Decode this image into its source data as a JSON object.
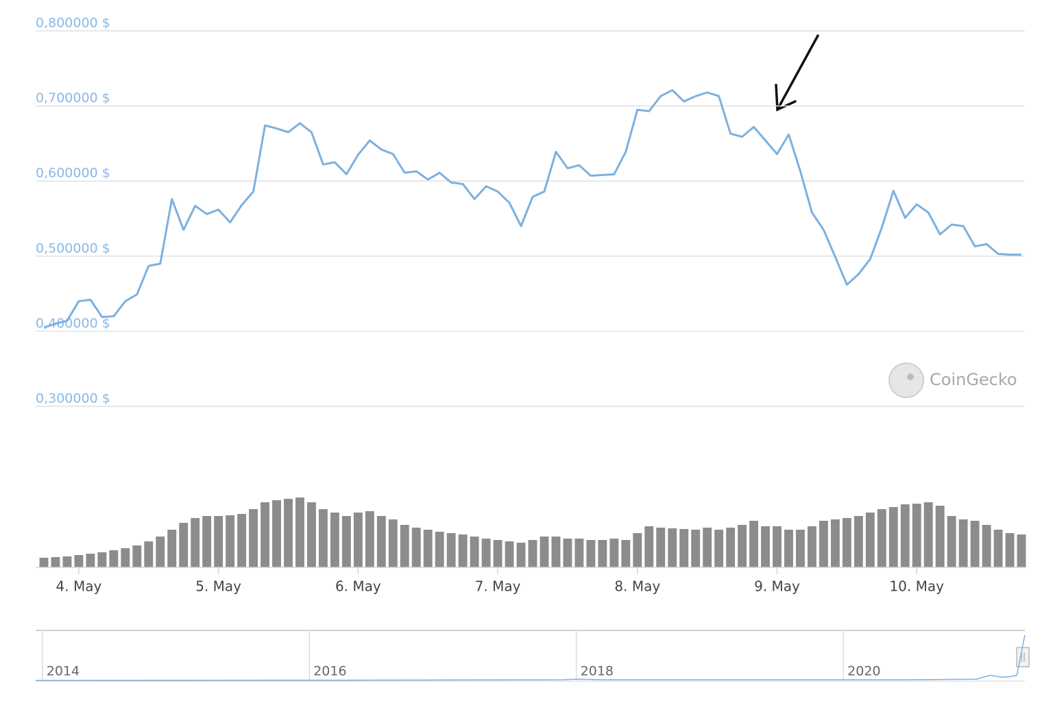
{
  "chart_data": [
    {
      "type": "line",
      "color": "#7cb0e0",
      "grid": true,
      "watermark": "CoinGecko",
      "ylim": [
        0.3,
        0.8
      ],
      "yticks": [
        {
          "value": 0.3,
          "label": "0,300000 $"
        },
        {
          "value": 0.4,
          "label": "0,400000 $"
        },
        {
          "value": 0.5,
          "label": "0,500000 $"
        },
        {
          "value": 0.6,
          "label": "0,600000 $"
        },
        {
          "value": 0.7,
          "label": "0,700000 $"
        },
        {
          "value": 0.8,
          "label": "0,800000 $"
        }
      ],
      "categories": [
        null,
        null,
        null,
        "4. May",
        null,
        null,
        null,
        null,
        null,
        null,
        null,
        null,
        null,
        null,
        null,
        "5. May",
        null,
        null,
        null,
        null,
        null,
        null,
        null,
        null,
        null,
        null,
        null,
        "6. May",
        null,
        null,
        null,
        null,
        null,
        null,
        null,
        null,
        null,
        null,
        null,
        "7. May",
        null,
        null,
        null,
        null,
        null,
        null,
        null,
        null,
        null,
        null,
        null,
        "8. May",
        null,
        null,
        null,
        null,
        null,
        null,
        null,
        null,
        null,
        null,
        null,
        "9. May",
        null,
        null,
        null,
        null,
        null,
        null,
        null,
        null,
        null,
        null,
        null,
        "10. May",
        null,
        null,
        null,
        null,
        null,
        null,
        null,
        null,
        null
      ],
      "values": [
        0.405,
        0.41,
        0.414,
        0.44,
        0.442,
        0.419,
        0.42,
        0.44,
        0.449,
        0.487,
        0.49,
        0.576,
        0.535,
        0.567,
        0.556,
        0.562,
        0.545,
        0.568,
        0.586,
        0.674,
        0.67,
        0.665,
        0.677,
        0.665,
        0.622,
        0.625,
        0.609,
        0.635,
        0.654,
        0.642,
        0.636,
        0.611,
        0.613,
        0.602,
        0.611,
        0.598,
        0.596,
        0.576,
        0.593,
        0.586,
        0.571,
        0.54,
        0.579,
        0.586,
        0.639,
        0.617,
        0.621,
        0.607,
        0.608,
        0.609,
        0.639,
        0.695,
        0.693,
        0.713,
        0.721,
        0.706,
        0.713,
        0.718,
        0.713,
        0.663,
        0.659,
        0.672,
        0.654,
        0.636,
        0.662,
        0.613,
        0.558,
        0.535,
        0.499,
        0.462,
        0.476,
        0.496,
        0.538,
        0.587,
        0.551,
        0.569,
        0.558,
        0.529,
        0.542,
        0.54,
        0.513,
        0.516,
        0.503,
        0.502,
        0.502
      ]
    },
    {
      "type": "bar",
      "color": "#8c8c8c",
      "ylim": [
        0,
        110
      ],
      "values": [
        14,
        15,
        16,
        18,
        20,
        22,
        25,
        28,
        32,
        38,
        45,
        55,
        65,
        72,
        75,
        75,
        76,
        78,
        85,
        95,
        98,
        100,
        102,
        95,
        85,
        80,
        75,
        80,
        82,
        75,
        70,
        62,
        58,
        55,
        52,
        50,
        48,
        45,
        42,
        40,
        38,
        36,
        40,
        45,
        45,
        42,
        42,
        40,
        40,
        42,
        40,
        50,
        60,
        58,
        57,
        56,
        55,
        58,
        55,
        58,
        62,
        68,
        60,
        60,
        55,
        55,
        60,
        68,
        70,
        72,
        75,
        80,
        85,
        88,
        92,
        93,
        95,
        90,
        75,
        70,
        68,
        62,
        55,
        50,
        48
      ]
    },
    {
      "type": "line",
      "color": "#7cb0e0",
      "xlim": [
        2013.95,
        2021.36
      ],
      "xticks": [
        2014,
        2016,
        2018,
        2020
      ],
      "ylim": [
        0,
        0.75
      ],
      "x": [
        2013.95,
        2016.5,
        2017.9,
        2018.0,
        2018.2,
        2020.5,
        2021.0,
        2021.1,
        2021.18,
        2021.25,
        2021.3,
        2021.34,
        2021.36
      ],
      "values": [
        0,
        0.005,
        0.01,
        0.02,
        0.01,
        0.01,
        0.02,
        0.08,
        0.05,
        0.06,
        0.08,
        0.5,
        0.7
      ]
    }
  ]
}
